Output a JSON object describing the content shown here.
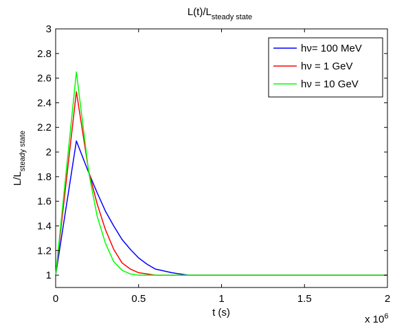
{
  "chart_data": {
    "type": "line",
    "title": "L(t)/L",
    "title_sub": "steady state",
    "xlabel": "t (s)",
    "ylabel": "L/L",
    "ylabel_sub": "steady state",
    "x_multiplier": "x 10",
    "x_multiplier_exp": "6",
    "xlim": [
      0,
      2
    ],
    "ylim": [
      0.9,
      3
    ],
    "xticks": [
      0,
      0.5,
      1,
      1.5,
      2
    ],
    "xtick_labels": [
      "0",
      "0.5",
      "1",
      "1.5",
      "2"
    ],
    "yticks": [
      1,
      1.2,
      1.4,
      1.6,
      1.8,
      2,
      2.2,
      2.4,
      2.6,
      2.8,
      3
    ],
    "ytick_labels": [
      "1",
      "1.2",
      "1.4",
      "1.6",
      "1.8",
      "2",
      "2.2",
      "2.4",
      "2.6",
      "2.8",
      "3"
    ],
    "grid": false,
    "legend_position": "top-right",
    "series": [
      {
        "name": "hν= 100 MeV",
        "color": "#0000ff",
        "x": [
          0,
          0.125,
          0.2,
          0.25,
          0.3,
          0.35,
          0.4,
          0.45,
          0.5,
          0.55,
          0.6,
          0.7,
          0.8,
          0.9,
          1.0,
          1.5,
          2.0
        ],
        "y": [
          1.0,
          2.09,
          1.83,
          1.67,
          1.52,
          1.4,
          1.29,
          1.21,
          1.14,
          1.09,
          1.05,
          1.02,
          1.0,
          1.0,
          1.0,
          1.0,
          1.0
        ]
      },
      {
        "name": "hν = 1 GeV",
        "color": "#ff0000",
        "x": [
          0,
          0.125,
          0.2,
          0.25,
          0.3,
          0.35,
          0.4,
          0.45,
          0.5,
          0.55,
          0.6,
          0.7,
          0.8,
          1.0,
          1.5,
          2.0
        ],
        "y": [
          1.0,
          2.49,
          1.84,
          1.58,
          1.37,
          1.21,
          1.1,
          1.05,
          1.02,
          1.01,
          1.0,
          1.0,
          1.0,
          1.0,
          1.0,
          1.0
        ]
      },
      {
        "name": "hν = 10 GeV",
        "color": "#00ff00",
        "x": [
          0,
          0.125,
          0.2,
          0.25,
          0.3,
          0.35,
          0.4,
          0.45,
          0.5,
          0.55,
          0.6,
          0.7,
          0.8,
          1.0,
          1.5,
          2.0
        ],
        "y": [
          1.0,
          2.65,
          1.83,
          1.48,
          1.26,
          1.11,
          1.04,
          1.01,
          1.0,
          1.0,
          1.0,
          1.0,
          1.0,
          1.0,
          1.0,
          1.0
        ]
      }
    ]
  }
}
